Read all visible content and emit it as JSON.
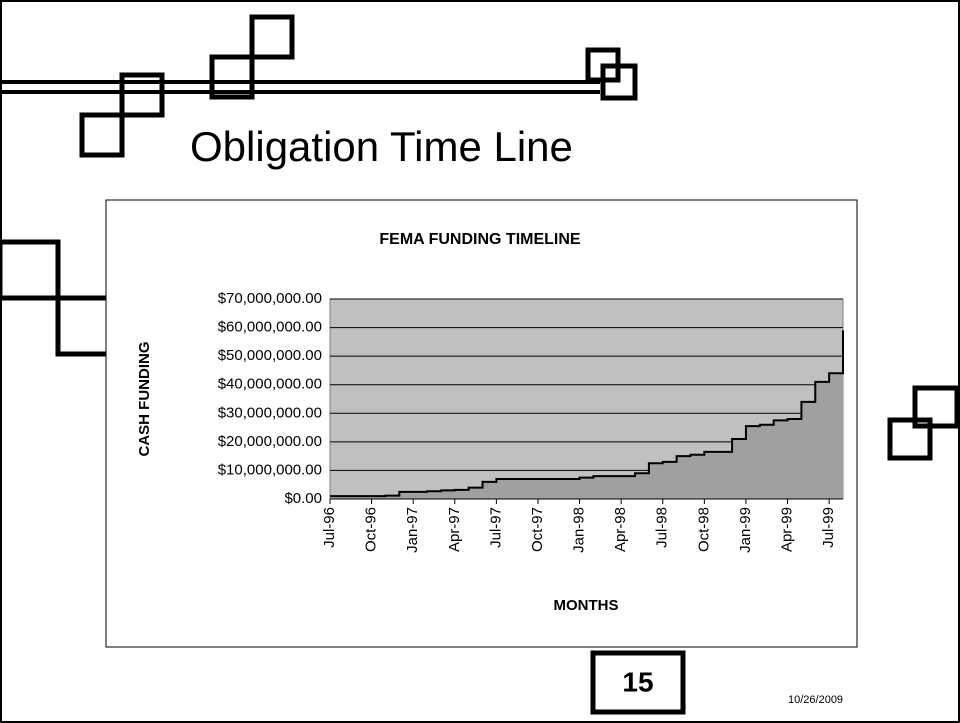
{
  "slide": {
    "title": "Obligation Time Line",
    "page": "15",
    "date": "10/26/2009"
  },
  "chart_data": {
    "type": "area",
    "title": "FEMA FUNDING TIMELINE",
    "x_label": "MONTHS",
    "y_label": "CASH FUNDING",
    "x": [
      "1996-07",
      "1996-08",
      "1996-09",
      "1996-10",
      "1996-11",
      "1996-12",
      "1997-01",
      "1997-02",
      "1997-03",
      "1997-04",
      "1997-05",
      "1997-06",
      "1997-07",
      "1997-08",
      "1997-09",
      "1997-10",
      "1997-11",
      "1997-12",
      "1998-01",
      "1998-02",
      "1998-03",
      "1998-04",
      "1998-05",
      "1998-06",
      "1998-07",
      "1998-08",
      "1998-09",
      "1998-10",
      "1998-11",
      "1998-12",
      "1999-01",
      "1999-02",
      "1999-03",
      "1999-04",
      "1999-05",
      "1999-06",
      "1999-07",
      "1999-08"
    ],
    "values": [
      1000000,
      1000000,
      1000000,
      1000000,
      1200000,
      2500000,
      2500000,
      2700000,
      3000000,
      3200000,
      4000000,
      6000000,
      7000000,
      7000000,
      7000000,
      7000000,
      7000000,
      7000000,
      7500000,
      8000000,
      8000000,
      8000000,
      9000000,
      12500000,
      13000000,
      15000000,
      15500000,
      16500000,
      16500000,
      21000000,
      25500000,
      26000000,
      27500000,
      28000000,
      34000000,
      41000000,
      44000000,
      59000000
    ],
    "color": "#a0a0a0",
    "line_color": "#000000",
    "plot_background": "#c0c0c0",
    "grid": true,
    "xlim": [
      "1996-07",
      "1999-08"
    ],
    "xticks": [
      {
        "value": "1996-07",
        "label": "Jul-96"
      },
      {
        "value": "1996-10",
        "label": "Oct-96"
      },
      {
        "value": "1997-01",
        "label": "Jan-97"
      },
      {
        "value": "1997-04",
        "label": "Apr-97"
      },
      {
        "value": "1997-07",
        "label": "Jul-97"
      },
      {
        "value": "1997-10",
        "label": "Oct-97"
      },
      {
        "value": "1998-01",
        "label": "Jan-98"
      },
      {
        "value": "1998-04",
        "label": "Apr-98"
      },
      {
        "value": "1998-07",
        "label": "Jul-98"
      },
      {
        "value": "1998-10",
        "label": "Oct-98"
      },
      {
        "value": "1999-01",
        "label": "Jan-99"
      },
      {
        "value": "1999-04",
        "label": "Apr-99"
      },
      {
        "value": "1999-07",
        "label": "Jul-99"
      }
    ],
    "ylim": [
      0,
      70000000
    ],
    "yticks": [
      {
        "value": 0,
        "label": "$0.00"
      },
      {
        "value": 10000000,
        "label": "$10,000,000.00"
      },
      {
        "value": 20000000,
        "label": "$20,000,000.00"
      },
      {
        "value": 30000000,
        "label": "$30,000,000.00"
      },
      {
        "value": 40000000,
        "label": "$40,000,000.00"
      },
      {
        "value": 50000000,
        "label": "$50,000,000.00"
      },
      {
        "value": 60000000,
        "label": "$60,000,000.00"
      },
      {
        "value": 70000000,
        "label": "$70,000,000.00"
      }
    ]
  }
}
